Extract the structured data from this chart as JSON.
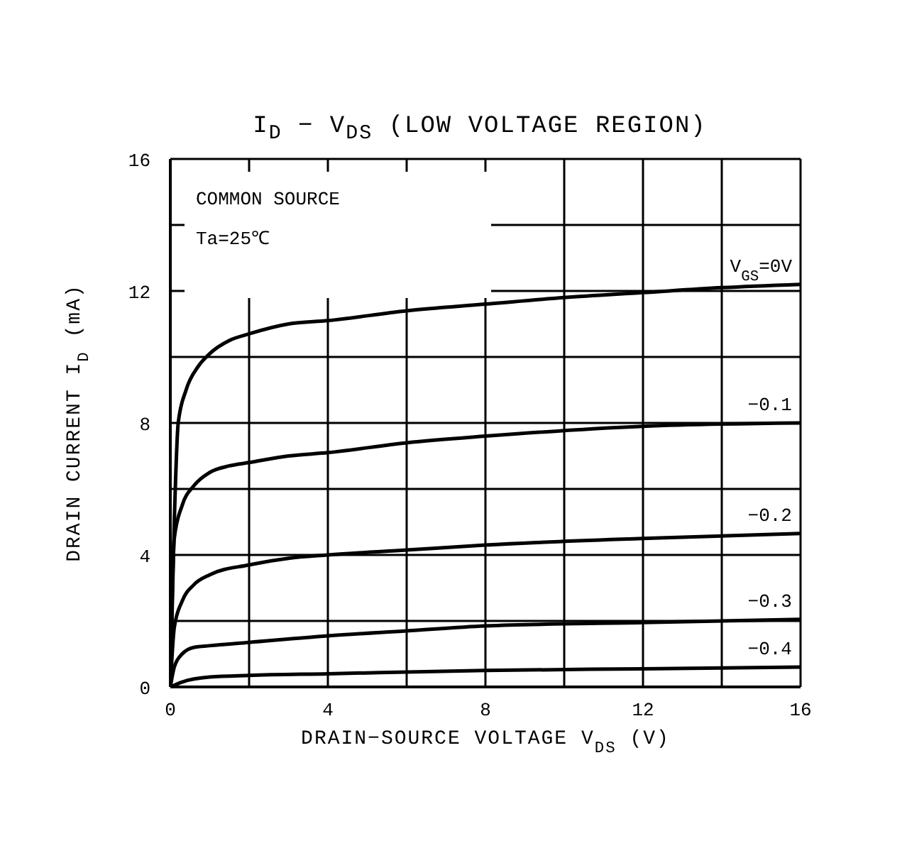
{
  "chart_data": {
    "type": "line",
    "title": "I$_{D}$ − V$_{DS}$ (LOW VOLTAGE REGION)",
    "xlabel": "DRAIN−SOURCE VOLTAGE V$_{DS}$ (V)",
    "ylabel": "DRAIN CURRENT  I$_{D}$ (mA)",
    "annotations": [
      "COMMON SOURCE",
      "Ta=25℃"
    ],
    "xlim": [
      0,
      16
    ],
    "ylim": [
      0,
      16
    ],
    "xticks": [
      0,
      {
        "value": 2,
        "label": null
      },
      4,
      {
        "value": 6,
        "label": null
      },
      8,
      {
        "value": 10,
        "label": null
      },
      12,
      {
        "value": 14,
        "label": null
      },
      16
    ],
    "yticks": [
      0,
      {
        "value": 2,
        "label": null
      },
      4,
      {
        "value": 6,
        "label": null
      },
      8,
      {
        "value": 10,
        "label": null
      },
      12,
      {
        "value": 14,
        "label": null
      },
      16
    ],
    "grid": true,
    "legend": false,
    "marker": "none",
    "line_style": "solid",
    "series": [
      {
        "name": "V$_{GS}$=0V",
        "color": "#000000",
        "x": [
          0,
          0.1,
          0.2,
          0.4,
          0.7,
          1,
          1.5,
          2,
          3,
          4,
          6,
          8,
          10,
          12,
          14,
          16
        ],
        "values": [
          0,
          5,
          8,
          9,
          9.7,
          10.1,
          10.5,
          10.7,
          11,
          11.1,
          11.4,
          11.6,
          11.8,
          11.95,
          12.1,
          12.2
        ]
      },
      {
        "name": "−0.1",
        "color": "#000000",
        "x": [
          0,
          0.1,
          0.3,
          0.6,
          1,
          1.5,
          2,
          3,
          4,
          6,
          8,
          12,
          16
        ],
        "values": [
          0,
          4.5,
          5.5,
          6.1,
          6.5,
          6.7,
          6.8,
          7,
          7.1,
          7.4,
          7.6,
          7.9,
          8
        ]
      },
      {
        "name": "−0.2",
        "color": "#000000",
        "x": [
          0,
          0.1,
          0.3,
          0.6,
          1,
          2,
          3,
          4,
          6,
          8,
          12,
          16
        ],
        "values": [
          0,
          1.8,
          2.6,
          3.1,
          3.4,
          3.7,
          3.9,
          4,
          4.15,
          4.3,
          4.5,
          4.65
        ]
      },
      {
        "name": "−0.3",
        "color": "#000000",
        "x": [
          0,
          0.1,
          0.3,
          0.6,
          1,
          2,
          4,
          6,
          8,
          12,
          16
        ],
        "values": [
          0,
          0.6,
          1,
          1.2,
          1.25,
          1.35,
          1.55,
          1.7,
          1.85,
          1.95,
          2.05
        ]
      },
      {
        "name": "−0.4",
        "color": "#000000",
        "x": [
          0,
          0.3,
          1,
          2,
          4,
          8,
          12,
          16
        ],
        "values": [
          0,
          0.15,
          0.3,
          0.35,
          0.4,
          0.5,
          0.55,
          0.6
        ]
      }
    ]
  }
}
